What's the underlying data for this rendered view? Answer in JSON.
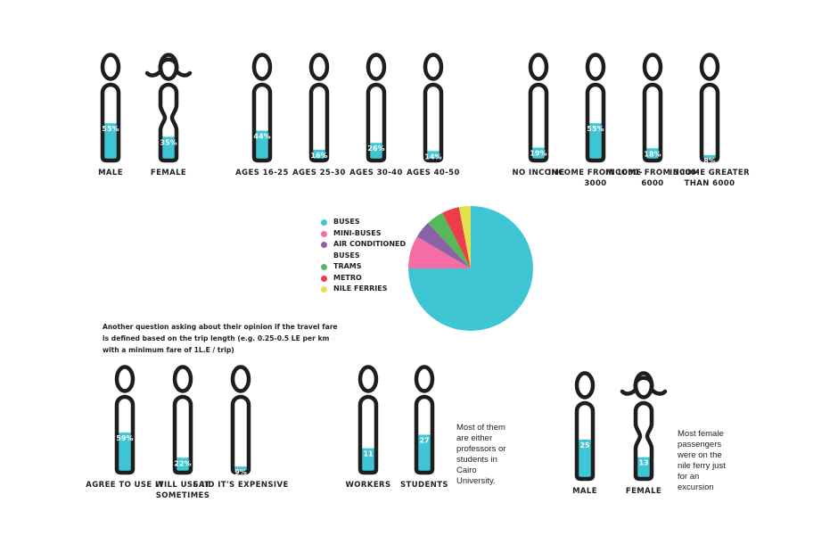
{
  "colors": {
    "fill": "#3ec6d4",
    "outline": "#1e1e1e",
    "buses": "#3ec6d4",
    "mini_buses": "#f46ea5",
    "air_conditioned_buses": "#8a62a6",
    "trams": "#55b95a",
    "metro": "#ec3d4a",
    "nile_ferries": "#e3e14f"
  },
  "groups": {
    "gender": [
      {
        "label": "MALE",
        "value_label": "55%",
        "fill_pct": 0.55,
        "type": "male"
      },
      {
        "label": "FEMALE",
        "value_label": "35%",
        "fill_pct": 0.35,
        "type": "female"
      }
    ],
    "ages": [
      {
        "label": "AGES 16-25",
        "value_label": "44%",
        "fill_pct": 0.44,
        "type": "male"
      },
      {
        "label": "AGES 25-30",
        "value_label": "16%",
        "fill_pct": 0.16,
        "type": "male"
      },
      {
        "label": "AGES 30-40",
        "value_label": "26%",
        "fill_pct": 0.26,
        "type": "male"
      },
      {
        "label": "AGES 40-50",
        "value_label": "14%",
        "fill_pct": 0.14,
        "type": "male"
      }
    ],
    "income": [
      {
        "label": "NO INCOME",
        "value_label": "19%",
        "fill_pct": 0.19,
        "type": "male"
      },
      {
        "label": "INCOME FROM 1000-3000",
        "value_label": "55%",
        "fill_pct": 0.55,
        "type": "male"
      },
      {
        "label": "INCOME FROM 3000-6000",
        "value_label": "18%",
        "fill_pct": 0.18,
        "type": "male"
      },
      {
        "label": "INCOME GREATER THAN 6000",
        "value_label": "8%",
        "fill_pct": 0.08,
        "type": "male"
      }
    ],
    "opinion": [
      {
        "label": "AGREE TO USE IT",
        "value_label": "59%",
        "fill_pct": 0.59,
        "type": "male"
      },
      {
        "label": "WILL USE IT SOMETIMES",
        "value_label": "22%",
        "fill_pct": 0.22,
        "type": "male"
      },
      {
        "label": "SAID IT'S EXPENSIVE",
        "value_label": "9%",
        "fill_pct": 0.09,
        "type": "male"
      }
    ],
    "occupation": [
      {
        "label": "WORKERS",
        "value_label": "11",
        "fill_pct": 0.36,
        "type": "male"
      },
      {
        "label": "STUDENTS",
        "value_label": "27",
        "fill_pct": 0.56,
        "type": "male"
      }
    ],
    "ferry_gender": [
      {
        "label": "MALE",
        "value_label": "25",
        "fill_pct": 0.58,
        "type": "male"
      },
      {
        "label": "FEMALE",
        "value_label": "13",
        "fill_pct": 0.32,
        "type": "female"
      }
    ]
  },
  "texts": {
    "intro": "Another question asking about their opinion if the travel fare is defined based on the trip length (e.g. 0.25-0.5 LE per km with a minimum fare of 1L.E / trip)",
    "occupation_note": "Most of them are either professors or students in Cairo University.",
    "ferry_note": "Most female passengers were on the nile ferry just for an excursion"
  },
  "chart_data": {
    "type": "pie",
    "title": "",
    "slices": [
      {
        "label": "BUSES",
        "value": 75,
        "color": "#3ec6d4"
      },
      {
        "label": "MINI-BUSES",
        "value": 8.5,
        "color": "#f46ea5"
      },
      {
        "label": "AIR CONDITIONED BUSES",
        "value": 4.5,
        "color": "#8a62a6"
      },
      {
        "label": "TRAMS",
        "value": 4.5,
        "color": "#55b95a"
      },
      {
        "label": "METRO",
        "value": 4.5,
        "color": "#ec3d4a"
      },
      {
        "label": "NILE FERRIES",
        "value": 3,
        "color": "#e3e14f"
      }
    ],
    "legend_position": "left"
  }
}
